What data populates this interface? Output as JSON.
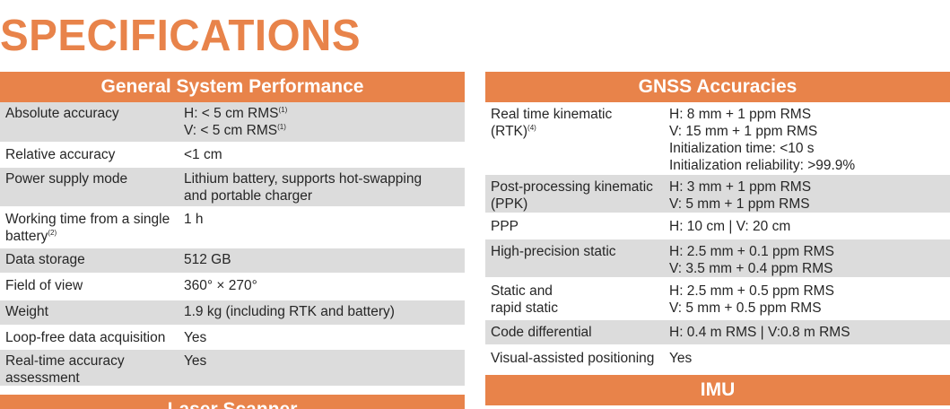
{
  "title": "SPECIFICATIONS",
  "general": {
    "header": "General System Performance",
    "rows": [
      {
        "label": [
          "Absolute accuracy"
        ],
        "values": [
          "H: < 5 cm RMS",
          "V: < 5 cm RMS"
        ],
        "value_sups": [
          "(1)",
          "(1)"
        ],
        "shade": "gray",
        "h": 46
      },
      {
        "label": [
          "Relative accuracy"
        ],
        "values": [
          "<1 cm"
        ],
        "shade": "white",
        "h": 27
      },
      {
        "label": [
          "Power supply mode"
        ],
        "values": [
          "Lithium battery, supports hot-swapping",
          "and portable charger"
        ],
        "shade": "gray",
        "h": 45
      },
      {
        "label": [
          "Working time from a single",
          "battery"
        ],
        "label_sup": "(2)",
        "values": [
          "1 h"
        ],
        "shade": "white",
        "h": 45
      },
      {
        "label": [
          "Data storage"
        ],
        "values": [
          "512 GB"
        ],
        "shade": "gray",
        "h": 29
      },
      {
        "label": [
          "Field of view"
        ],
        "values": [
          "360° × 270°"
        ],
        "shade": "white",
        "h": 29
      },
      {
        "label": [
          "Weight"
        ],
        "values": [
          "1.9 kg (including RTK and battery)"
        ],
        "shade": "gray",
        "h": 29
      },
      {
        "label": [
          "Loop-free data acquisition"
        ],
        "values": [
          "Yes"
        ],
        "shade": "white",
        "h": 26
      },
      {
        "label": [
          "Real-time accuracy",
          "assessment"
        ],
        "values": [
          "Yes"
        ],
        "shade": "gray",
        "h": 42
      }
    ]
  },
  "laser_header": "Laser Scanner",
  "gnss": {
    "header": "GNSS Accuracies",
    "rows": [
      {
        "label": [
          "Real time kinematic",
          "(RTK)"
        ],
        "label_sup": "(4)",
        "values": [
          "H: 8 mm + 1 ppm RMS",
          "V: 15 mm + 1 ppm RMS",
          "Initialization time: <10 s",
          "Initialization reliability: >99.9%"
        ],
        "shade": "white",
        "h": 81
      },
      {
        "label": [
          "Post-processing kinematic",
          "(PPK)"
        ],
        "values": [
          "H: 3 mm + 1 ppm RMS",
          "V: 5 mm + 1 ppm RMS"
        ],
        "shade": "gray",
        "h": 44
      },
      {
        "label": [
          "PPP"
        ],
        "values": [
          "H: 10 cm | V: 20 cm"
        ],
        "shade": "white",
        "h": 28
      },
      {
        "label": [
          "High-precision static"
        ],
        "values": [
          "H: 2.5 mm + 0.1 ppm RMS",
          "V: 3.5 mm + 0.4 ppm RMS"
        ],
        "shade": "gray",
        "h": 44
      },
      {
        "label": [
          "Static and",
          "rapid static"
        ],
        "values": [
          "H: 2.5 mm + 0.5 ppm RMS",
          "V: 5 mm + 0.5 ppm RMS"
        ],
        "shade": "white",
        "h": 46
      },
      {
        "label": [
          "Code differential"
        ],
        "values": [
          "H: 0.4 m RMS | V:0.8 m RMS"
        ],
        "shade": "gray",
        "h": 29
      },
      {
        "label": [
          "Visual-assisted positioning"
        ],
        "values": [
          "Yes"
        ],
        "shade": "white",
        "h": 28
      }
    ]
  },
  "imu_header": "IMU"
}
